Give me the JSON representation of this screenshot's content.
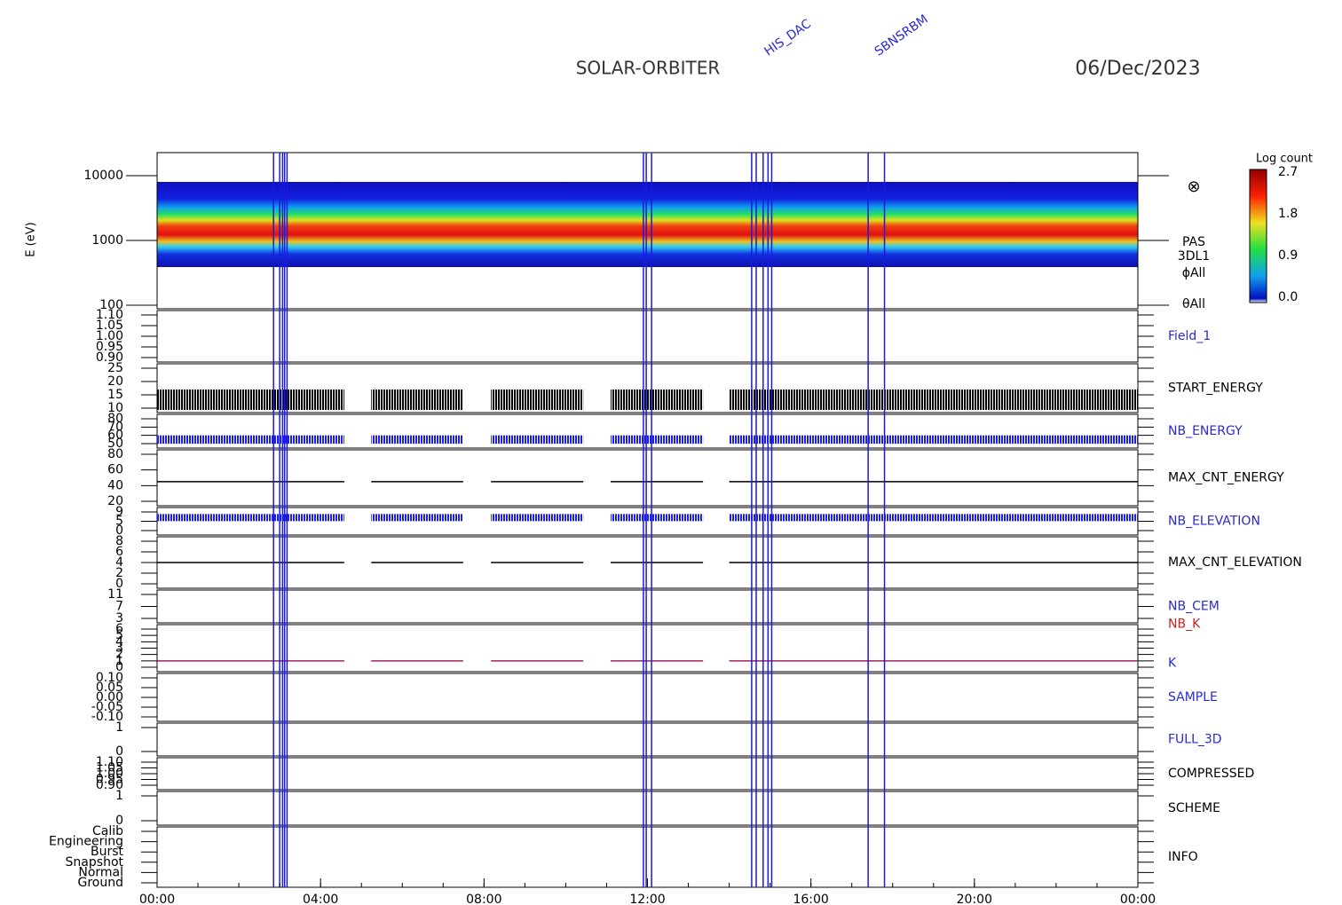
{
  "title": "SOLAR-ORBITER",
  "date": "06/Dec/2023",
  "x_axis": {
    "ticks": [
      "00:00",
      "04:00",
      "08:00",
      "12:00",
      "16:00",
      "20:00",
      "00:00"
    ]
  },
  "spectrogram": {
    "ylabel": "E (eV)",
    "yticks": [
      {
        "value": 10000,
        "label": "10000"
      },
      {
        "value": 1000,
        "label": "1000"
      },
      {
        "value": 100,
        "label": "100"
      }
    ],
    "labels": [
      "PAS",
      "3DL1",
      "ϕAll",
      "θAll"
    ],
    "symbol": "⊗"
  },
  "colorbar": {
    "label": "Log count",
    "ticks": [
      "2.7",
      "1.8",
      "0.9",
      "0.0"
    ]
  },
  "coverage": [
    [
      0,
      4.58
    ],
    [
      5.24,
      7.49
    ],
    [
      8.17,
      10.43
    ],
    [
      11.1,
      13.36
    ],
    [
      14.0,
      24
    ]
  ],
  "events": [
    2.85,
    3.0,
    3.07,
    3.12,
    3.18,
    11.9,
    11.97,
    12.1,
    14.55,
    14.66,
    14.83,
    14.95,
    15.04,
    17.4,
    17.8
  ],
  "annotations": [
    {
      "time": 14.9,
      "text": "HIS_DAC"
    },
    {
      "time": 17.6,
      "text": "SBNSRBM"
    }
  ],
  "panels": [
    {
      "label": "Field_1",
      "color": "#2a2ad0",
      "yticks": [
        "1.10",
        "1.05",
        "1.00",
        "0.95",
        "0.90"
      ]
    },
    {
      "label": "START_ENERGY",
      "color": "#000000",
      "yticks": [
        "25",
        "20",
        "15",
        "10"
      ],
      "level": 17,
      "style": "bars"
    },
    {
      "label": "NB_ENERGY",
      "color": "#2a2ad0",
      "yticks": [
        "80",
        "70",
        "60",
        "50"
      ],
      "level": 60,
      "style": "band"
    },
    {
      "label": "MAX_CNT_ENERGY",
      "color": "#000000",
      "yticks": [
        "80",
        "60",
        "40",
        "20"
      ],
      "level": 45,
      "style": "line"
    },
    {
      "label": "NB_ELEVATION",
      "color": "#2a2ad0",
      "yticks": [
        "9",
        "5",
        "0"
      ],
      "level": 8,
      "style": "band"
    },
    {
      "label": "MAX_CNT_ELEVATION",
      "color": "#000000",
      "yticks": [
        "8",
        "6",
        "4",
        "2",
        "0"
      ],
      "level": 4,
      "style": "line"
    },
    {
      "label": "NB_CEM",
      "color": "#2a2ad0",
      "yticks": [
        "11",
        "7",
        "3"
      ]
    },
    {
      "label": "NB_K",
      "color": "#d02020",
      "label2": "K",
      "color2": "#2a2ad0",
      "yticks": [
        "6",
        "5",
        "4",
        "3",
        "2",
        "1",
        "0"
      ],
      "level": 1,
      "style": "line",
      "trace_color": "#a0206a"
    },
    {
      "label": "SAMPLE",
      "color": "#2a2ad0",
      "yticks": [
        "0.10",
        "0.05",
        "0.00",
        "-0.05",
        "-0.10"
      ]
    },
    {
      "label": "FULL_3D",
      "color": "#2a2ad0",
      "yticks": [
        "1",
        "0"
      ]
    },
    {
      "label": "COMPRESSED",
      "color": "#000000",
      "yticks": [
        "1.10",
        "1.05",
        "1.00",
        "0.95",
        "0.90"
      ]
    },
    {
      "label": "SCHEME",
      "color": "#000000",
      "yticks": [
        "1",
        "0"
      ]
    },
    {
      "label": "INFO",
      "color": "#000000",
      "yticks": [
        "Calib",
        "Engineering",
        "Burst",
        "Snapshot",
        "Normal",
        "Ground"
      ]
    }
  ]
}
